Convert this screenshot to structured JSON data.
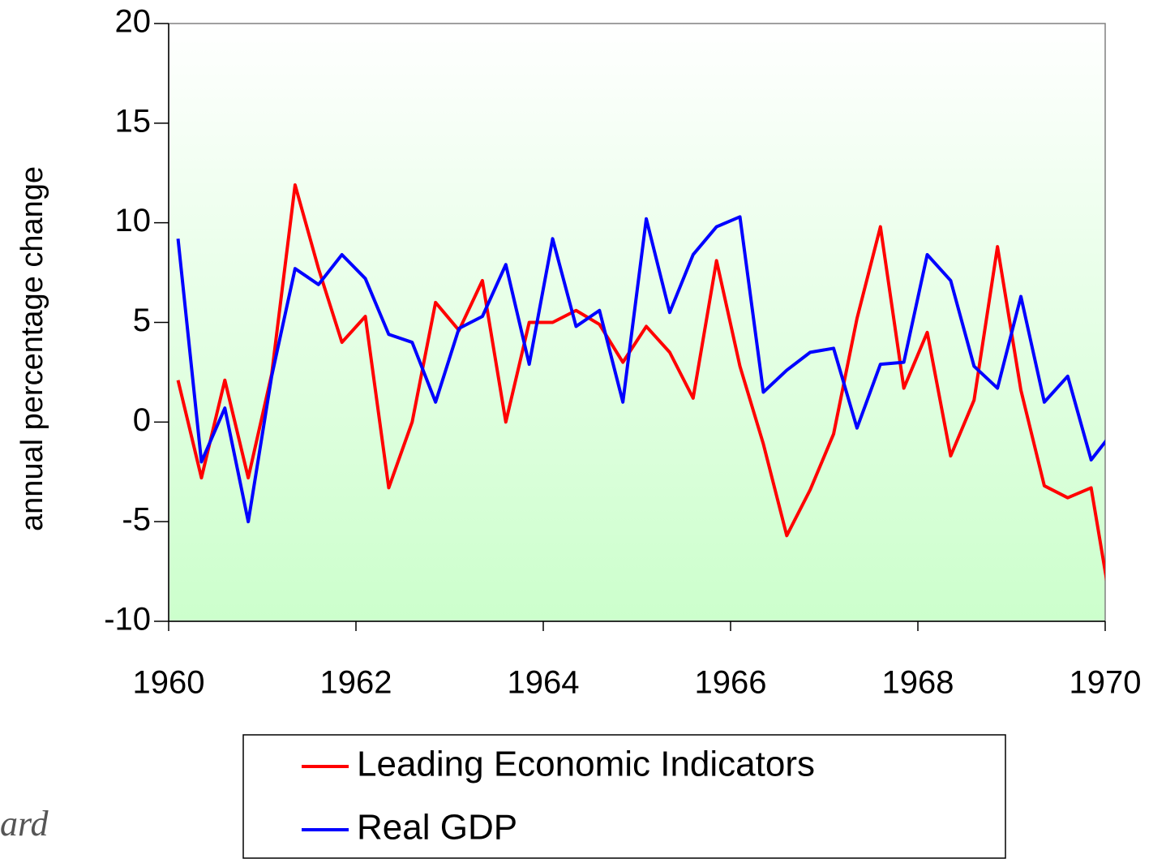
{
  "chart_data": {
    "type": "line",
    "ylabel": "annual percentage change",
    "x": [
      1960.1,
      1960.35,
      1960.6,
      1960.85,
      1961.1,
      1961.35,
      1961.6,
      1961.85,
      1962.1,
      1962.35,
      1962.6,
      1962.85,
      1963.1,
      1963.35,
      1963.6,
      1963.85,
      1964.1,
      1964.35,
      1964.6,
      1964.85,
      1965.1,
      1965.35,
      1965.6,
      1965.85,
      1966.1,
      1966.35,
      1966.6,
      1966.85,
      1967.1,
      1967.35,
      1967.6,
      1967.85,
      1968.1,
      1968.35,
      1968.6,
      1968.85,
      1969.1,
      1969.35,
      1969.6,
      1969.85,
      1970.1
    ],
    "series": [
      {
        "name": "Leading Economic Indicators",
        "color": "#ff0000",
        "values": [
          2.1,
          -2.8,
          2.1,
          -2.8,
          2.4,
          11.9,
          7.7,
          4.0,
          5.3,
          -3.3,
          0,
          6.0,
          4.6,
          7.1,
          0,
          5.0,
          5.0,
          5.6,
          4.9,
          3.0,
          4.8,
          3.5,
          1.2,
          8.1,
          2.8,
          -1.1,
          -5.7,
          -3.4,
          -0.6,
          5.2,
          9.8,
          1.7,
          4.5,
          -1.7,
          1.1,
          8.8,
          1.6,
          -3.2,
          -3.8,
          -3.3,
          -10.3
        ]
      },
      {
        "name": "Real GDP",
        "color": "#0000ff",
        "values": [
          9.2,
          -2.0,
          0.7,
          -5.0,
          2.3,
          7.7,
          6.9,
          8.4,
          7.2,
          4.4,
          4.0,
          1.0,
          4.7,
          5.3,
          7.9,
          2.9,
          9.2,
          4.8,
          5.6,
          1.0,
          10.2,
          5.5,
          8.4,
          9.8,
          10.3,
          1.5,
          2.6,
          3.5,
          3.7,
          -0.3,
          2.9,
          3.0,
          8.4,
          7.1,
          2.8,
          1.7,
          6.3,
          1.0,
          2.3,
          -1.9,
          -0.4
        ]
      }
    ],
    "xlim": [
      1960,
      1970
    ],
    "xticks": [
      1960,
      1962,
      1964,
      1966,
      1968,
      1970
    ],
    "ylim": [
      -10,
      20
    ],
    "yticks": [
      -10,
      -5,
      0,
      5,
      10,
      15,
      20
    ],
    "legend": "bottom",
    "footnote": "ard"
  }
}
